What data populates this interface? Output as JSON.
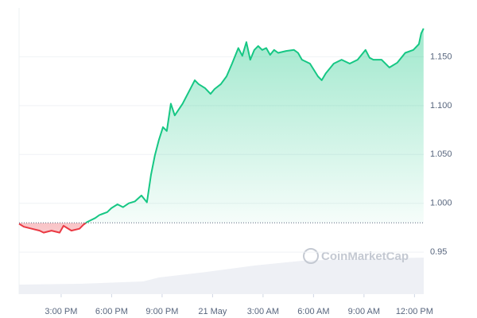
{
  "chart_data": {
    "type": "line",
    "x": [
      12.5,
      12.78,
      13.25,
      13.72,
      13.96,
      14.43,
      14.91,
      15.14,
      15.61,
      16.09,
      16.32,
      16.56,
      17.03,
      17.27,
      17.74,
      17.98,
      18.35,
      18.68,
      19.02,
      19.39,
      19.77,
      20.1,
      20.34,
      20.57,
      20.81,
      21.05,
      21.28,
      21.52,
      21.75,
      22.22,
      22.7,
      22.94,
      23.17,
      23.55,
      23.88,
      24.12,
      24.49,
      24.83,
      25.16,
      25.53,
      25.77,
      26.01,
      26.24,
      26.48,
      26.71,
      26.95,
      27.19,
      27.42,
      27.66,
      27.9,
      28.37,
      28.84,
      29.08,
      29.31,
      29.79,
      30.26,
      30.49,
      30.73,
      31.2,
      31.67,
      32.15,
      32.62,
      33.09,
      33.33,
      33.56,
      34.04,
      34.51,
      34.98,
      35.45,
      35.93,
      36.26,
      36.4,
      36.54
    ],
    "series": [
      {
        "values": [
          0.979,
          0.976,
          0.974,
          0.972,
          0.97,
          0.972,
          0.97,
          0.977,
          0.972,
          0.974,
          0.978,
          0.981,
          0.985,
          0.988,
          0.991,
          0.995,
          0.999,
          0.996,
          1.0,
          1.002,
          1.008,
          1.001,
          1.029,
          1.049,
          1.065,
          1.078,
          1.074,
          1.102,
          1.09,
          1.102,
          1.118,
          1.126,
          1.122,
          1.118,
          1.112,
          1.117,
          1.122,
          1.13,
          1.143,
          1.159,
          1.151,
          1.165,
          1.147,
          1.157,
          1.161,
          1.157,
          1.159,
          1.152,
          1.157,
          1.154,
          1.156,
          1.157,
          1.154,
          1.147,
          1.143,
          1.13,
          1.126,
          1.133,
          1.143,
          1.147,
          1.143,
          1.147,
          1.157,
          1.149,
          1.147,
          1.147,
          1.139,
          1.144,
          1.154,
          1.157,
          1.163,
          1.174,
          1.179
        ]
      }
    ],
    "baseline": 0.98,
    "up_color": "#16c784",
    "down_color": "#ea3943",
    "xlim": [
      12.5,
      36.55
    ],
    "xticks": [
      {
        "value": 15,
        "label": "3:00 PM"
      },
      {
        "value": 18,
        "label": "6:00 PM"
      },
      {
        "value": 21,
        "label": "9:00 PM"
      },
      {
        "value": 24,
        "label": "21 May"
      },
      {
        "value": 27,
        "label": "3:00 AM"
      },
      {
        "value": 30,
        "label": "6:00 AM"
      },
      {
        "value": 33,
        "label": "9:00 AM"
      },
      {
        "value": 36,
        "label": "12:00 PM"
      }
    ],
    "ylim": [
      0.907,
      1.2
    ],
    "yticks": [
      0.95,
      {
        "value": 1.0,
        "label": "1.000"
      },
      {
        "value": 1.05,
        "label": "1.050"
      },
      {
        "value": 1.1,
        "label": "1.100"
      },
      {
        "value": 1.15,
        "label": "1.150"
      }
    ],
    "grid": true,
    "watermark": "CoinMarketCap"
  }
}
